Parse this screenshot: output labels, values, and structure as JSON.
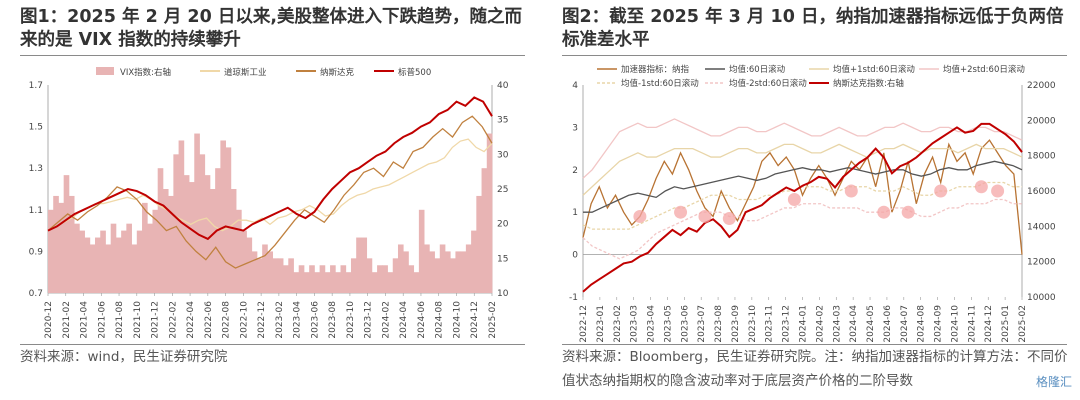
{
  "left": {
    "title": "图1：2025 年 2 月 20 日以来,美股整体进入下跌趋势，随之而来的是 VIX 指数的持续攀升",
    "source": "资料来源：wind，民生证券研究院",
    "chart_data": {
      "type": "line",
      "legend": [
        "VIX指数:右轴",
        "道琼斯工业",
        "纳斯达克",
        "标普500"
      ],
      "yticks_left": [
        "0.7",
        "0.9",
        "1.1",
        "1.3",
        "1.5",
        "1.7"
      ],
      "yticks_right": [
        "10",
        "15",
        "20",
        "25",
        "30",
        "35",
        "40"
      ],
      "ylim_left": [
        0.7,
        1.7
      ],
      "ylim_right": [
        10,
        40
      ],
      "xticks": [
        "2020-12",
        "2021-02",
        "2021-04",
        "2021-06",
        "2021-08",
        "2021-10",
        "2021-12",
        "2022-02",
        "2022-04",
        "2022-06",
        "2022-08",
        "2022-10",
        "2022-12",
        "2023-02",
        "2023-04",
        "2023-06",
        "2023-08",
        "2023-10",
        "2023-12",
        "2024-02",
        "2024-04",
        "2024-06",
        "2024-08",
        "2024-10",
        "2024-12",
        "2025-02"
      ],
      "x_index": [
        0,
        1,
        2,
        3,
        4,
        5,
        6,
        7,
        8,
        9,
        10,
        11,
        12,
        13,
        14,
        15,
        16,
        17,
        18,
        19,
        20,
        21,
        22,
        23,
        24,
        25,
        26,
        27,
        28,
        29,
        30,
        31,
        32,
        33,
        34,
        35,
        36,
        37,
        38,
        39,
        40,
        41,
        42,
        43,
        44,
        45,
        46,
        47,
        48,
        49,
        50,
        51
      ],
      "series": [
        {
          "name": "VIX指数:右轴",
          "axis": "right",
          "color": "#e8b4b4",
          "values": [
            22,
            24,
            23,
            27,
            24,
            20,
            19,
            18,
            17,
            18,
            19,
            17,
            20,
            18,
            19,
            20,
            17,
            19,
            23,
            20,
            22,
            28,
            25,
            24,
            30,
            32,
            27,
            26,
            33,
            30,
            27,
            25,
            28,
            32,
            31,
            25,
            22,
            19,
            18,
            16,
            15,
            17,
            16,
            15,
            15,
            14,
            15,
            13,
            14,
            13,
            14,
            13,
            14,
            13,
            14,
            13,
            14,
            13,
            15,
            18,
            18,
            15,
            13,
            14,
            14,
            13,
            15,
            17,
            16,
            14,
            13,
            22,
            17,
            16,
            15,
            17,
            16,
            15,
            16,
            16,
            17,
            19,
            24,
            28,
            33
          ]
        },
        {
          "name": "道琼斯工业",
          "axis": "left",
          "color": "#f0d8a8",
          "values": [
            1.0,
            1.02,
            1.04,
            1.06,
            1.09,
            1.11,
            1.13,
            1.13,
            1.14,
            1.15,
            1.16,
            1.15,
            1.17,
            1.15,
            1.12,
            1.1,
            1.07,
            1.05,
            1.03,
            1.05,
            1.06,
            1.02,
            1.0,
            1.02,
            1.05,
            1.05,
            1.04,
            1.06,
            1.03,
            1.06,
            1.07,
            1.09,
            1.1,
            1.12,
            1.1,
            1.07,
            1.08,
            1.12,
            1.15,
            1.17,
            1.18,
            1.2,
            1.21,
            1.22,
            1.24,
            1.26,
            1.28,
            1.3,
            1.32,
            1.33,
            1.35,
            1.4,
            1.43,
            1.44,
            1.4,
            1.38,
            1.42
          ]
        },
        {
          "name": "纳斯达克",
          "axis": "left",
          "color": "#c0813f",
          "values": [
            1.0,
            1.04,
            1.08,
            1.05,
            1.09,
            1.12,
            1.16,
            1.21,
            1.19,
            1.15,
            1.09,
            1.05,
            1.0,
            1.02,
            0.95,
            0.9,
            0.86,
            0.92,
            0.85,
            0.82,
            0.84,
            0.86,
            0.88,
            0.93,
            0.99,
            1.05,
            1.1,
            1.07,
            1.04,
            1.1,
            1.17,
            1.22,
            1.28,
            1.3,
            1.26,
            1.33,
            1.3,
            1.38,
            1.4,
            1.45,
            1.49,
            1.45,
            1.52,
            1.55,
            1.5,
            1.42
          ]
        },
        {
          "name": "标普500",
          "axis": "left",
          "color": "#c00000",
          "values": [
            1.0,
            1.02,
            1.05,
            1.08,
            1.1,
            1.12,
            1.14,
            1.16,
            1.18,
            1.2,
            1.19,
            1.17,
            1.14,
            1.12,
            1.08,
            1.04,
            1.01,
            0.98,
            0.96,
            1.0,
            1.02,
            1.01,
            1.0,
            1.03,
            1.05,
            1.07,
            1.09,
            1.11,
            1.08,
            1.06,
            1.09,
            1.15,
            1.2,
            1.24,
            1.28,
            1.3,
            1.33,
            1.36,
            1.38,
            1.42,
            1.45,
            1.47,
            1.5,
            1.52,
            1.56,
            1.58,
            1.62,
            1.6,
            1.64,
            1.62,
            1.55
          ]
        }
      ]
    }
  },
  "right": {
    "title": "图2：截至 2025 年 3 月 10 日，纳指加速器指标远低于负两倍标准差水平",
    "source": "资料来源：Bloomberg，民生证券研究院。注：纳指加速器指标的计算方法：不同价值状态纳指期权的隐含波动率对于底层资产价格的二阶导数",
    "watermark": "格隆汇",
    "chart_data": {
      "type": "line",
      "legend": [
        "加速器指标：纳指",
        "均值:60日滚动",
        "均值+1std:60日滚动",
        "均值+2std:60日滚动",
        "均值-1std:60日滚动",
        "均值-2std:60日滚动",
        "纳斯达克指数:右轴"
      ],
      "yticks_left": [
        "-1",
        "0",
        "1",
        "2",
        "3",
        "4"
      ],
      "yticks_right": [
        "10000",
        "12000",
        "14000",
        "16000",
        "18000",
        "20000",
        "22000"
      ],
      "ylim_left": [
        -1,
        4
      ],
      "ylim_right": [
        10000,
        22000
      ],
      "xticks": [
        "2022-12",
        "2023-01",
        "2023-02",
        "2023-03",
        "2023-04",
        "2023-05",
        "2023-06",
        "2023-07",
        "2023-08",
        "2023-09",
        "2023-10",
        "2023-11",
        "2023-12",
        "2024-01",
        "2024-02",
        "2024-03",
        "2024-04",
        "2024-05",
        "2024-06",
        "2024-07",
        "2024-08",
        "2024-09",
        "2024-10",
        "2024-11",
        "2024-12",
        "2025-01",
        "2025-02"
      ],
      "x_index": [
        0,
        1,
        2,
        3,
        4,
        5,
        6,
        7,
        8,
        9,
        10,
        11,
        12,
        13,
        14,
        15,
        16,
        17,
        18,
        19,
        20,
        21,
        22,
        23,
        24,
        25,
        26,
        27,
        28,
        29,
        30,
        31,
        32,
        33,
        34,
        35,
        36,
        37,
        38,
        39,
        40,
        41,
        42,
        43,
        44,
        45,
        46,
        47,
        48,
        49,
        50,
        51,
        52,
        53,
        54
      ],
      "series": [
        {
          "name": "加速器指标：纳指",
          "axis": "left",
          "color": "#b87333",
          "values": [
            0.4,
            1.2,
            1.6,
            1.1,
            1.4,
            1.0,
            0.7,
            0.9,
            1.3,
            1.8,
            2.2,
            1.9,
            2.4,
            2.0,
            1.5,
            1.1,
            0.9,
            1.5,
            1.1,
            0.8,
            1.2,
            1.6,
            2.2,
            2.4,
            2.1,
            2.3,
            2.0,
            1.4,
            1.8,
            2.1,
            1.8,
            1.4,
            1.8,
            2.2,
            2.0,
            2.3,
            1.6,
            2.4,
            1.0,
            1.5,
            2.2,
            1.2,
            1.9,
            2.3,
            1.7,
            2.6,
            2.2,
            2.4,
            1.9,
            2.5,
            2.7,
            2.4,
            2.1,
            1.9,
            0.0
          ]
        },
        {
          "name": "均值:60日滚动",
          "axis": "left",
          "color": "#555555",
          "values": [
            1.0,
            1.0,
            1.1,
            1.2,
            1.3,
            1.4,
            1.45,
            1.4,
            1.35,
            1.5,
            1.6,
            1.55,
            1.6,
            1.65,
            1.7,
            1.75,
            1.8,
            1.85,
            1.8,
            1.75,
            1.8,
            1.9,
            1.95,
            2.0,
            2.05,
            2.0,
            2.0,
            1.95,
            2.0,
            2.05,
            2.0,
            1.95,
            1.9,
            1.95,
            2.0,
            2.0,
            1.9,
            1.85,
            1.9,
            2.0,
            2.05,
            2.0,
            2.0,
            2.1,
            2.15,
            2.2,
            2.15,
            2.1,
            2.0
          ]
        },
        {
          "name": "均值+1std:60日滚动",
          "axis": "left",
          "color": "#e8d5a8",
          "values": [
            1.4,
            1.6,
            1.8,
            2.0,
            2.2,
            2.3,
            2.4,
            2.3,
            2.3,
            2.4,
            2.5,
            2.5,
            2.5,
            2.4,
            2.3,
            2.3,
            2.4,
            2.5,
            2.5,
            2.4,
            2.4,
            2.5,
            2.6,
            2.6,
            2.5,
            2.4,
            2.4,
            2.5,
            2.6,
            2.5,
            2.4,
            2.3,
            2.4,
            2.5,
            2.5,
            2.6,
            2.5,
            2.4,
            2.5,
            2.5,
            2.5,
            2.4,
            2.5,
            2.6,
            2.5,
            2.5,
            2.5,
            2.4,
            2.3
          ]
        },
        {
          "name": "均值+2std:60日滚动",
          "axis": "left",
          "color": "#f2c6c6",
          "values": [
            1.8,
            2.0,
            2.3,
            2.6,
            2.9,
            3.0,
            3.1,
            3.0,
            3.0,
            3.1,
            3.2,
            3.1,
            3.0,
            2.9,
            2.8,
            2.8,
            2.9,
            3.0,
            3.0,
            2.9,
            2.9,
            3.0,
            3.1,
            3.0,
            2.9,
            2.8,
            2.8,
            2.9,
            3.0,
            2.9,
            2.8,
            2.8,
            2.9,
            3.0,
            3.0,
            3.1,
            3.0,
            2.9,
            2.9,
            3.0,
            3.0,
            2.9,
            2.9,
            3.0,
            3.0,
            2.9,
            2.9,
            2.8,
            2.7
          ]
        },
        {
          "name": "均值-1std:60日滚动",
          "axis": "left",
          "color": "#e8d5a8",
          "values": [
            0.7,
            0.6,
            0.6,
            0.6,
            0.6,
            0.6,
            0.7,
            0.8,
            0.9,
            1.0,
            1.1,
            1.1,
            1.2,
            1.3,
            1.4,
            1.4,
            1.4,
            1.3,
            1.3,
            1.3,
            1.4,
            1.4,
            1.5,
            1.5,
            1.6,
            1.6,
            1.6,
            1.5,
            1.5,
            1.6,
            1.6,
            1.6,
            1.5,
            1.5,
            1.5,
            1.6,
            1.5,
            1.4,
            1.4,
            1.5,
            1.5,
            1.6,
            1.6,
            1.6,
            1.7,
            1.7,
            1.7,
            1.6,
            1.6
          ]
        },
        {
          "name": "均值-2std:60日滚动",
          "axis": "left",
          "color": "#f2c6c6",
          "values": [
            0.4,
            0.2,
            0.1,
            0.0,
            -0.1,
            0.0,
            0.1,
            0.3,
            0.5,
            0.6,
            0.7,
            0.8,
            0.9,
            1.0,
            1.0,
            1.0,
            0.9,
            0.9,
            0.8,
            0.8,
            0.9,
            1.0,
            1.1,
            1.1,
            1.2,
            1.2,
            1.2,
            1.1,
            1.1,
            1.1,
            1.1,
            1.0,
            1.0,
            1.0,
            1.1,
            1.1,
            1.0,
            0.9,
            0.9,
            1.0,
            1.1,
            1.1,
            1.2,
            1.2,
            1.2,
            1.3,
            1.3,
            1.2,
            1.2
          ]
        },
        {
          "name": "纳斯达克指数:右轴",
          "axis": "right",
          "color": "#c00000",
          "values": [
            10300,
            10700,
            11000,
            11300,
            11600,
            11900,
            12000,
            12300,
            12500,
            13000,
            13400,
            13800,
            13500,
            13900,
            13700,
            14200,
            14400,
            14000,
            13400,
            13800,
            14800,
            15000,
            15200,
            15600,
            15900,
            16200,
            16000,
            16300,
            16500,
            16800,
            16700,
            16200,
            16800,
            17200,
            17600,
            17900,
            18400,
            17900,
            17000,
            17400,
            17600,
            17900,
            18300,
            18700,
            19000,
            19300,
            19600,
            19300,
            19400,
            19800,
            19800,
            19500,
            19200,
            18800,
            18200
          ]
        },
        {
          "name": "低点标记",
          "axis": "left",
          "color": "#f4a6a6",
          "points": [
            [
              7,
              0.9
            ],
            [
              12,
              1.0
            ],
            [
              15,
              0.9
            ],
            [
              18,
              0.85
            ],
            [
              26,
              1.3
            ],
            [
              33,
              1.5
            ],
            [
              37,
              1.0
            ],
            [
              40,
              1.0
            ],
            [
              44,
              1.5
            ],
            [
              49,
              1.6
            ],
            [
              51,
              1.5
            ]
          ]
        }
      ]
    }
  }
}
